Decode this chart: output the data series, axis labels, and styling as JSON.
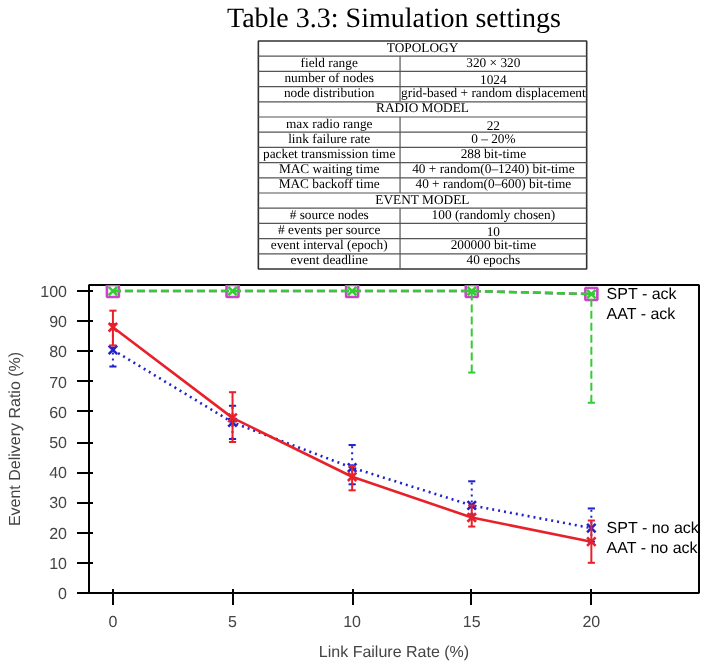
{
  "chart_data": [
    {
      "type": "other",
      "title": "Table 3.3: Simulation settings",
      "y_categories": [
        null,
        "field range",
        "number of nodes",
        "node distribution",
        null,
        "max radio range",
        "link failure rate",
        "packet transmission time",
        "MAC waiting time",
        "MAC backoff time",
        null,
        "# source nodes",
        "# events per source",
        "event interval (epoch)",
        "event deadline"
      ],
      "cell_labels": [
        [
          "TOPOLOGY"
        ],
        [
          "320 × 320"
        ],
        [
          "1024"
        ],
        [
          "grid-based + random displacement"
        ],
        [
          "RADIO MODEL"
        ],
        [
          "22"
        ],
        [
          "0 – 20%"
        ],
        [
          "288 bit-time"
        ],
        [
          "40 + random(0–1240) bit-time"
        ],
        [
          "40 + random(0–600) bit-time"
        ],
        [
          "EVENT MODEL"
        ],
        [
          "100 (randomly chosen)"
        ],
        [
          "10"
        ],
        [
          "200000 bit-time"
        ],
        [
          "40 epochs"
        ]
      ]
    },
    {
      "type": "line",
      "xlabel": "Link Failure Rate (%)",
      "ylabel": "Event Delivery Ratio (%)",
      "x": [
        0,
        5,
        10,
        15,
        20
      ],
      "xlim": [
        -1,
        24.5
      ],
      "ylim": [
        0,
        102
      ],
      "xticks": [
        0,
        5,
        10,
        15,
        20
      ],
      "yticks": [
        0,
        10,
        20,
        30,
        40,
        50,
        60,
        70,
        80,
        90,
        100
      ],
      "grid": false,
      "series": [
        {
          "name": "SPT - ack",
          "color": "#cc44cc",
          "values": [
            100,
            100,
            100,
            100,
            99
          ],
          "marker": "square",
          "line_style": "dashed"
        },
        {
          "name": "AAT - ack",
          "color": "#33cc33",
          "values": [
            100,
            100,
            100,
            100,
            99
          ],
          "marker": "cross",
          "line_style": "dashed",
          "errors": [
            null,
            null,
            null,
            [
              73,
              100
            ],
            [
              63,
              99
            ]
          ]
        },
        {
          "name": "SPT - no ack",
          "color": "#2222cc",
          "values": [
            80.5,
            56.5,
            41.5,
            29,
            21.5
          ],
          "marker": "cross",
          "line_style": "dotted",
          "errors": [
            [
              75,
              89
            ],
            [
              51,
              62
            ],
            [
              36,
              49
            ],
            [
              26,
              37
            ],
            [
              17,
              28
            ]
          ]
        },
        {
          "name": "AAT - no ack",
          "color": "#e8202a",
          "values": [
            88,
            58,
            38.5,
            25,
            17
          ],
          "marker": "cross",
          "line_style": "solid",
          "errors": [
            [
              82,
              93.5
            ],
            [
              50,
              66.5
            ],
            [
              34,
              42
            ],
            [
              22,
              29
            ],
            [
              10,
              24
            ]
          ]
        }
      ]
    }
  ]
}
